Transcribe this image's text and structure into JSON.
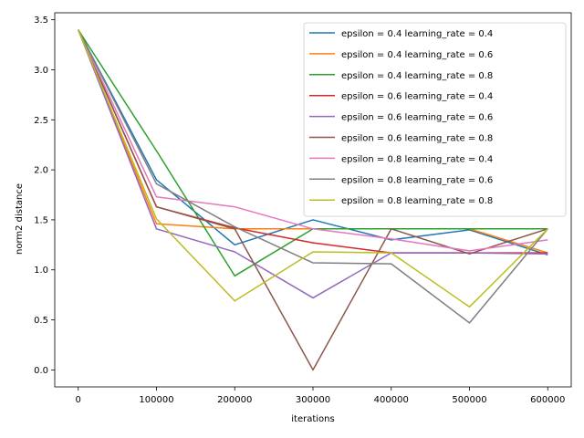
{
  "chart_data": {
    "type": "line",
    "title": "",
    "xlabel": "iterations",
    "ylabel": "norm2 distance",
    "x": [
      0,
      100000,
      200000,
      300000,
      400000,
      500000,
      600000
    ],
    "xlim": [
      -30000,
      630000
    ],
    "ylim": [
      -0.17,
      3.57
    ],
    "xticks": [
      0,
      100000,
      200000,
      300000,
      400000,
      500000,
      600000
    ],
    "xtick_labels": [
      "0",
      "100000",
      "200000",
      "300000",
      "400000",
      "500000",
      "600000"
    ],
    "yticks": [
      0.0,
      0.5,
      1.0,
      1.5,
      2.0,
      2.5,
      3.0,
      3.5
    ],
    "ytick_labels": [
      "0.0",
      "0.5",
      "1.0",
      "1.5",
      "2.0",
      "2.5",
      "3.0",
      "3.5"
    ],
    "grid": false,
    "legend_position": "top-right",
    "series": [
      {
        "name": "epsilon = 0.4 learning_rate = 0.4",
        "color": "#1f77b4",
        "values": [
          3.4,
          1.9,
          1.25,
          1.5,
          1.3,
          1.4,
          1.15
        ]
      },
      {
        "name": "epsilon = 0.4 learning_rate = 0.6",
        "color": "#ff7f0e",
        "values": [
          3.4,
          1.46,
          1.41,
          1.41,
          1.41,
          1.41,
          1.17
        ]
      },
      {
        "name": "epsilon = 0.4 learning_rate = 0.8",
        "color": "#2ca02c",
        "values": [
          3.4,
          2.19,
          0.94,
          1.41,
          1.41,
          1.41,
          1.41
        ]
      },
      {
        "name": "epsilon = 0.6 learning_rate = 0.4",
        "color": "#d62728",
        "values": [
          3.4,
          1.63,
          1.42,
          1.27,
          1.17,
          1.17,
          1.17
        ]
      },
      {
        "name": "epsilon = 0.6 learning_rate = 0.6",
        "color": "#9467bd",
        "values": [
          3.4,
          1.41,
          1.18,
          0.72,
          1.17,
          1.17,
          1.16
        ]
      },
      {
        "name": "epsilon = 0.6 learning_rate = 0.8",
        "color": "#8c564b",
        "values": [
          3.4,
          1.63,
          1.41,
          0.0,
          1.41,
          1.16,
          1.41
        ]
      },
      {
        "name": "epsilon = 0.8 learning_rate = 0.4",
        "color": "#e377c2",
        "values": [
          3.4,
          1.73,
          1.63,
          1.41,
          1.31,
          1.19,
          1.3
        ]
      },
      {
        "name": "epsilon = 0.8 learning_rate = 0.6",
        "color": "#7f7f7f",
        "values": [
          3.4,
          1.86,
          1.43,
          1.07,
          1.06,
          0.47,
          1.41
        ]
      },
      {
        "name": "epsilon = 0.8 learning_rate = 0.8",
        "color": "#bcbd22",
        "values": [
          3.4,
          1.51,
          0.69,
          1.18,
          1.17,
          0.63,
          1.41
        ]
      }
    ]
  }
}
